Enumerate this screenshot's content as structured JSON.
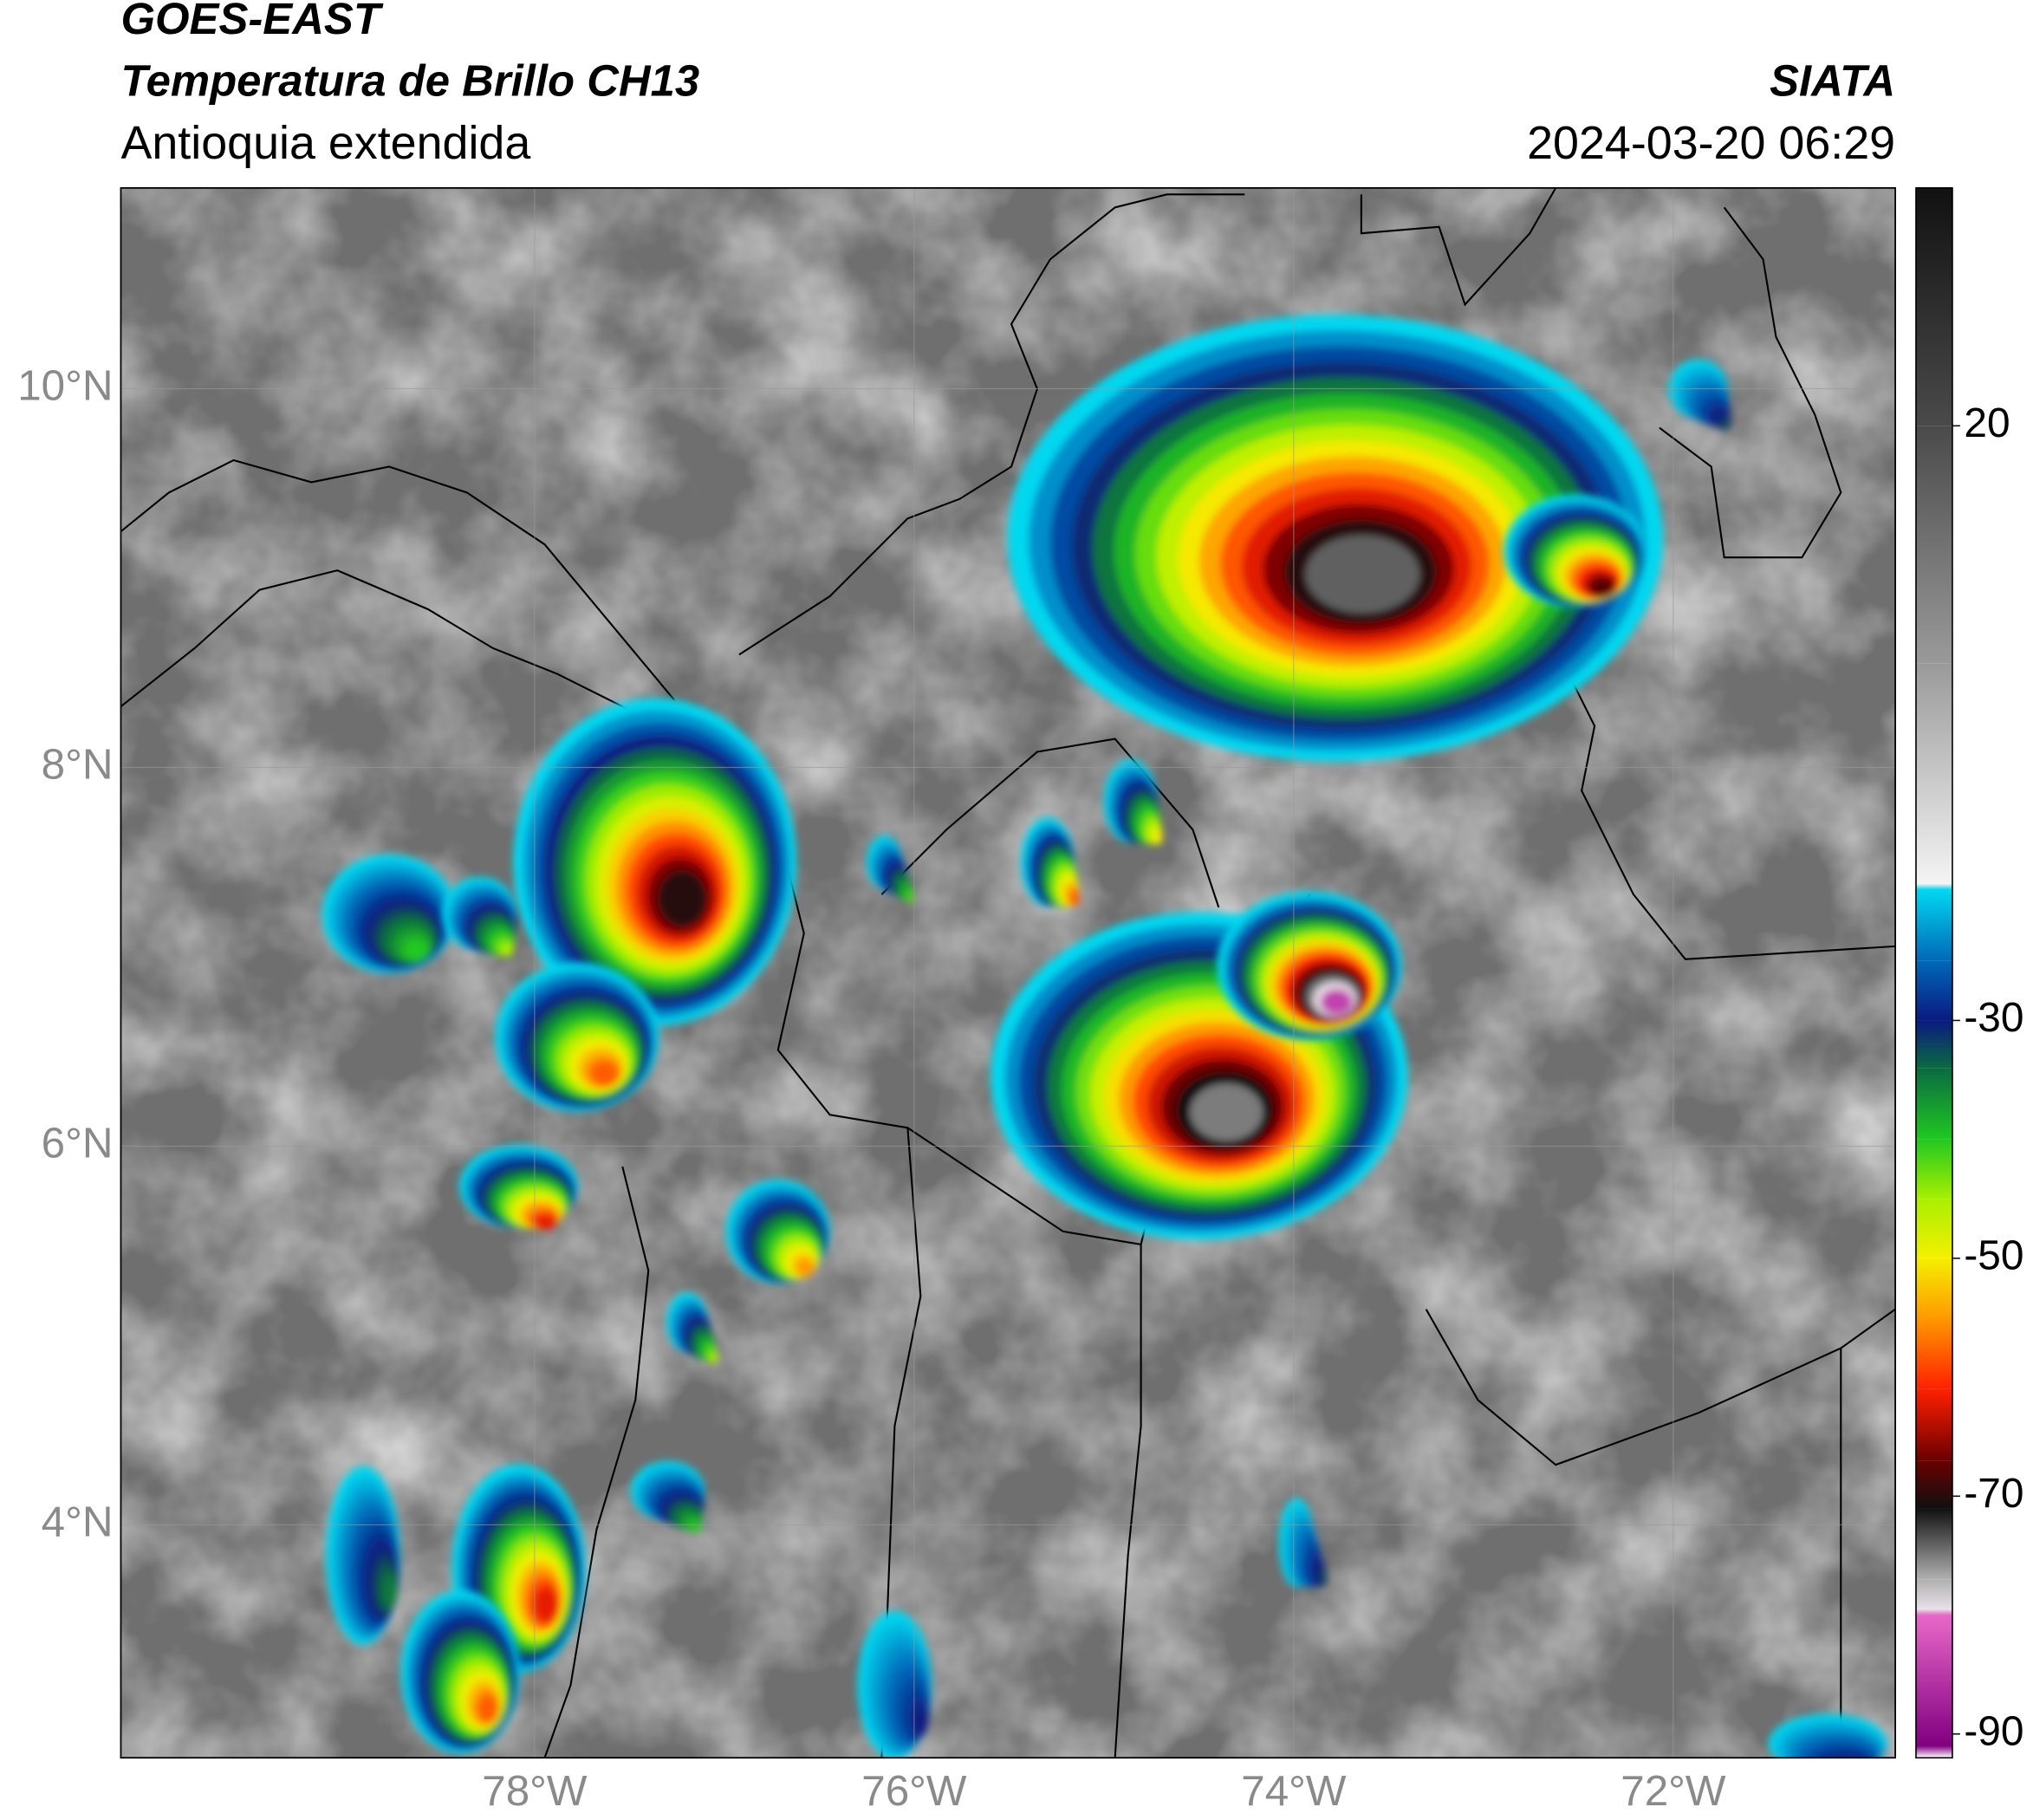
{
  "header": {
    "title": "GOES-EAST",
    "subtitle": "Temperatura de Brillo CH13",
    "region": "Antioquia extendida",
    "source": "SIATA",
    "datetime": "2024-03-20 06:29"
  },
  "map": {
    "xlim": [
      -80.18,
      -70.83
    ],
    "ylim": [
      2.77,
      11.06
    ],
    "xticks": [
      {
        "value": -78,
        "label": "78°W"
      },
      {
        "value": -76,
        "label": "76°W"
      },
      {
        "value": -74,
        "label": "74°W"
      },
      {
        "value": -72,
        "label": "72°W"
      }
    ],
    "yticks": [
      {
        "value": 10,
        "label": "10°N"
      },
      {
        "value": 8,
        "label": "8°N"
      },
      {
        "value": 6,
        "label": "6°N"
      },
      {
        "value": 4,
        "label": "4°N"
      }
    ],
    "grid": true
  },
  "colorbar": {
    "clim": [
      -92,
      40
    ],
    "ticks": [
      20,
      -30,
      -50,
      -70,
      -90
    ],
    "stops": [
      {
        "value": 40,
        "color": "#111111"
      },
      {
        "value": 20,
        "color": "#4a4a4a"
      },
      {
        "value": 0,
        "color": "#9a9a9a"
      },
      {
        "value": -18.5,
        "color": "#f4f4f4"
      },
      {
        "value": -19,
        "color": "#00d8f0"
      },
      {
        "value": -25,
        "color": "#0068b8"
      },
      {
        "value": -30,
        "color": "#0a1a80"
      },
      {
        "value": -34,
        "color": "#0a6a40"
      },
      {
        "value": -40,
        "color": "#20c820"
      },
      {
        "value": -45,
        "color": "#a8f000"
      },
      {
        "value": -50,
        "color": "#f4f000"
      },
      {
        "value": -55,
        "color": "#ff9a00"
      },
      {
        "value": -61,
        "color": "#ff2000"
      },
      {
        "value": -67,
        "color": "#6a0000"
      },
      {
        "value": -71,
        "color": "#101010"
      },
      {
        "value": -77,
        "color": "#b0b0b0"
      },
      {
        "value": -79.5,
        "color": "#e8e0e8"
      },
      {
        "value": -80,
        "color": "#e868c8"
      },
      {
        "value": -91,
        "color": "#800080"
      },
      {
        "value": -92,
        "color": "#ffffff"
      }
    ]
  }
}
